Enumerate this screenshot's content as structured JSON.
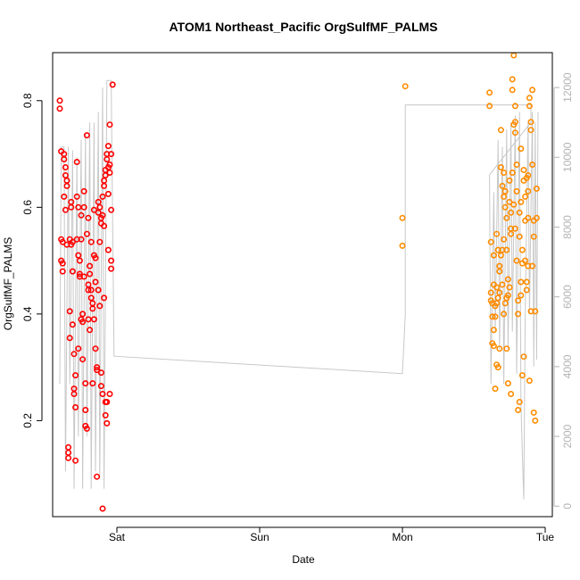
{
  "chart_data": {
    "type": "scatter",
    "title": "ATOM1 Northeast_Pacific OrgSulfMF_PALMS",
    "xlabel": "Date",
    "ylabel": "OrgSulfMF_PALMS",
    "x_unit": "days since Saturday 00:00",
    "xlim": [
      -0.45,
      3.05
    ],
    "ylim": [
      0.02,
      0.89
    ],
    "x_ticks": [
      {
        "label": "Sat",
        "value": 0
      },
      {
        "label": "Sun",
        "value": 1
      },
      {
        "label": "Mon",
        "value": 2
      },
      {
        "label": "Tue",
        "value": 3
      }
    ],
    "y_ticks": [
      {
        "label": "0.2",
        "value": 0.2
      },
      {
        "label": "0.4",
        "value": 0.4
      },
      {
        "label": "0.6",
        "value": 0.6
      },
      {
        "label": "0.8",
        "value": 0.8
      }
    ],
    "y2_ticks": [
      {
        "label": "0",
        "value": 0
      },
      {
        "label": "2000",
        "value": 2000
      },
      {
        "label": "4000",
        "value": 4000
      },
      {
        "label": "6000",
        "value": 6000
      },
      {
        "label": "8000",
        "value": 8000
      },
      {
        "label": "10000",
        "value": 10000
      },
      {
        "label": "12000",
        "value": 12000
      }
    ],
    "y2lim": [
      -300,
      13000
    ],
    "colors": {
      "series1": "#ff0000",
      "series2": "#ff8c00",
      "altitude": "#c8c8c8",
      "axis": "#000000",
      "right_axis": "#b3b3b3"
    },
    "series": [
      {
        "color": "#ff0000",
        "points": [
          [
            -0.4,
            0.8
          ],
          [
            -0.4,
            0.785
          ],
          [
            -0.39,
            0.705
          ],
          [
            -0.39,
            0.54
          ],
          [
            -0.39,
            0.5
          ],
          [
            -0.38,
            0.495
          ],
          [
            -0.38,
            0.48
          ],
          [
            -0.38,
            0.535
          ],
          [
            -0.37,
            0.7
          ],
          [
            -0.37,
            0.69
          ],
          [
            -0.37,
            0.62
          ],
          [
            -0.36,
            0.675
          ],
          [
            -0.36,
            0.66
          ],
          [
            -0.36,
            0.595
          ],
          [
            -0.35,
            0.65
          ],
          [
            -0.35,
            0.64
          ],
          [
            -0.35,
            0.53
          ],
          [
            -0.34,
            0.15
          ],
          [
            -0.34,
            0.14
          ],
          [
            -0.34,
            0.13
          ],
          [
            -0.33,
            0.405
          ],
          [
            -0.33,
            0.355
          ],
          [
            -0.33,
            0.54
          ],
          [
            -0.32,
            0.61
          ],
          [
            -0.32,
            0.6
          ],
          [
            -0.32,
            0.53
          ],
          [
            -0.31,
            0.535
          ],
          [
            -0.31,
            0.48
          ],
          [
            -0.31,
            0.38
          ],
          [
            -0.3,
            0.325
          ],
          [
            -0.3,
            0.25
          ],
          [
            -0.3,
            0.26
          ],
          [
            -0.29,
            0.125
          ],
          [
            -0.29,
            0.285
          ],
          [
            -0.29,
            0.225
          ],
          [
            -0.28,
            0.62
          ],
          [
            -0.28,
            0.54
          ],
          [
            -0.28,
            0.685
          ],
          [
            -0.27,
            0.6
          ],
          [
            -0.27,
            0.51
          ],
          [
            -0.27,
            0.335
          ],
          [
            -0.26,
            0.5
          ],
          [
            -0.26,
            0.475
          ],
          [
            -0.26,
            0.47
          ],
          [
            -0.25,
            0.585
          ],
          [
            -0.25,
            0.54
          ],
          [
            -0.25,
            0.39
          ],
          [
            -0.24,
            0.4
          ],
          [
            -0.24,
            0.385
          ],
          [
            -0.24,
            0.315
          ],
          [
            -0.23,
            0.63
          ],
          [
            -0.23,
            0.6
          ],
          [
            -0.23,
            0.47
          ],
          [
            -0.22,
            0.27
          ],
          [
            -0.22,
            0.22
          ],
          [
            -0.22,
            0.19
          ],
          [
            -0.21,
            0.735
          ],
          [
            -0.21,
            0.55
          ],
          [
            -0.21,
            0.185
          ],
          [
            -0.2,
            0.58
          ],
          [
            -0.2,
            0.455
          ],
          [
            -0.2,
            0.445
          ],
          [
            -0.19,
            0.49
          ],
          [
            -0.19,
            0.475
          ],
          [
            -0.19,
            0.37
          ],
          [
            -0.18,
            0.535
          ],
          [
            -0.18,
            0.445
          ],
          [
            -0.18,
            0.43
          ],
          [
            -0.17,
            0.42
          ],
          [
            -0.17,
            0.41
          ],
          [
            -0.17,
            0.27
          ],
          [
            -0.16,
            0.595
          ],
          [
            -0.16,
            0.51
          ],
          [
            -0.16,
            0.39
          ],
          [
            -0.15,
            0.505
          ],
          [
            -0.15,
            0.46
          ],
          [
            -0.15,
            0.335
          ],
          [
            -0.14,
            0.3
          ],
          [
            -0.14,
            0.295
          ],
          [
            -0.14,
            0.095
          ],
          [
            -0.13,
            0.61
          ],
          [
            -0.13,
            0.59
          ],
          [
            -0.13,
            0.445
          ],
          [
            -0.12,
            0.6
          ],
          [
            -0.12,
            0.535
          ],
          [
            -0.12,
            0.415
          ],
          [
            -0.11,
            0.58
          ],
          [
            -0.11,
            0.57
          ],
          [
            -0.11,
            0.29
          ],
          [
            -0.1,
            0.25
          ],
          [
            -0.1,
            0.035
          ],
          [
            -0.1,
            0.585
          ],
          [
            -0.09,
            0.65
          ],
          [
            -0.09,
            0.64
          ],
          [
            -0.09,
            0.565
          ],
          [
            -0.08,
            0.67
          ],
          [
            -0.08,
            0.66
          ],
          [
            -0.08,
            0.21
          ],
          [
            -0.07,
            0.7
          ],
          [
            -0.07,
            0.69
          ],
          [
            -0.07,
            0.195
          ],
          [
            -0.06,
            0.715
          ],
          [
            -0.06,
            0.675
          ],
          [
            -0.06,
            0.52
          ],
          [
            -0.05,
            0.755
          ],
          [
            -0.05,
            0.68
          ],
          [
            -0.05,
            0.25
          ],
          [
            -0.04,
            0.7
          ],
          [
            -0.04,
            0.595
          ],
          [
            -0.04,
            0.5
          ],
          [
            -0.04,
            0.485
          ],
          [
            -0.03,
            0.83
          ],
          [
            -0.07,
            0.235
          ],
          [
            -0.08,
            0.235
          ],
          [
            -0.1,
            0.62
          ],
          [
            -0.11,
            0.265
          ],
          [
            -0.05,
            0.665
          ],
          [
            -0.06,
            0.625
          ],
          [
            -0.09,
            0.43
          ],
          [
            -0.2,
            0.39
          ]
        ]
      },
      {
        "color": "#ff8c00",
        "points": [
          [
            2.02,
            0.827
          ],
          [
            2.0,
            0.58
          ],
          [
            2.0,
            0.528
          ],
          [
            2.61,
            0.815
          ],
          [
            2.61,
            0.79
          ],
          [
            2.62,
            0.535
          ],
          [
            2.62,
            0.44
          ],
          [
            2.62,
            0.425
          ],
          [
            2.63,
            0.42
          ],
          [
            2.63,
            0.395
          ],
          [
            2.63,
            0.345
          ],
          [
            2.64,
            0.51
          ],
          [
            2.64,
            0.455
          ],
          [
            2.64,
            0.37
          ],
          [
            2.64,
            0.34
          ],
          [
            2.65,
            0.415
          ],
          [
            2.65,
            0.395
          ],
          [
            2.65,
            0.26
          ],
          [
            2.66,
            0.55
          ],
          [
            2.66,
            0.45
          ],
          [
            2.66,
            0.305
          ],
          [
            2.67,
            0.43
          ],
          [
            2.67,
            0.52
          ],
          [
            2.67,
            0.3
          ],
          [
            2.68,
            0.48
          ],
          [
            2.68,
            0.44
          ],
          [
            2.68,
            0.335
          ],
          [
            2.69,
            0.745
          ],
          [
            2.69,
            0.675
          ],
          [
            2.69,
            0.51
          ],
          [
            2.7,
            0.64
          ],
          [
            2.7,
            0.52
          ],
          [
            2.7,
            0.455
          ],
          [
            2.71,
            0.665
          ],
          [
            2.71,
            0.54
          ],
          [
            2.71,
            0.4
          ],
          [
            2.72,
            0.63
          ],
          [
            2.72,
            0.6
          ],
          [
            2.72,
            0.42
          ],
          [
            2.73,
            0.58
          ],
          [
            2.73,
            0.52
          ],
          [
            2.73,
            0.335
          ],
          [
            2.74,
            0.465
          ],
          [
            2.74,
            0.435
          ],
          [
            2.74,
            0.27
          ],
          [
            2.75,
            0.65
          ],
          [
            2.75,
            0.61
          ],
          [
            2.75,
            0.45
          ],
          [
            2.76,
            0.59
          ],
          [
            2.76,
            0.55
          ],
          [
            2.76,
            0.25
          ],
          [
            2.77,
            0.84
          ],
          [
            2.77,
            0.82
          ],
          [
            2.77,
            0.665
          ],
          [
            2.78,
            0.885
          ],
          [
            2.78,
            0.755
          ],
          [
            2.78,
            0.605
          ],
          [
            2.79,
            0.76
          ],
          [
            2.79,
            0.74
          ],
          [
            2.79,
            0.56
          ],
          [
            2.8,
            0.68
          ],
          [
            2.8,
            0.63
          ],
          [
            2.8,
            0.5
          ],
          [
            2.81,
            0.425
          ],
          [
            2.81,
            0.4
          ],
          [
            2.81,
            0.22
          ],
          [
            2.82,
            0.59
          ],
          [
            2.82,
            0.545
          ],
          [
            2.82,
            0.235
          ],
          [
            2.83,
            0.71
          ],
          [
            2.83,
            0.61
          ],
          [
            2.83,
            0.435
          ],
          [
            2.84,
            0.52
          ],
          [
            2.84,
            0.495
          ],
          [
            2.84,
            0.285
          ],
          [
            2.85,
            0.67
          ],
          [
            2.85,
            0.65
          ],
          [
            2.85,
            0.32
          ],
          [
            2.86,
            0.62
          ],
          [
            2.86,
            0.575
          ],
          [
            2.86,
            0.5
          ],
          [
            2.87,
            0.655
          ],
          [
            2.87,
            0.46
          ],
          [
            2.87,
            0.445
          ],
          [
            2.88,
            0.66
          ],
          [
            2.88,
            0.58
          ],
          [
            2.88,
            0.49
          ],
          [
            2.89,
            0.805
          ],
          [
            2.89,
            0.79
          ],
          [
            2.89,
            0.275
          ],
          [
            2.9,
            0.76
          ],
          [
            2.9,
            0.745
          ],
          [
            2.9,
            0.405
          ],
          [
            2.91,
            0.82
          ],
          [
            2.91,
            0.68
          ],
          [
            2.91,
            0.49
          ],
          [
            2.92,
            0.575
          ],
          [
            2.92,
            0.545
          ],
          [
            2.92,
            0.215
          ],
          [
            2.93,
            0.2
          ],
          [
            2.93,
            0.405
          ],
          [
            2.94,
            0.635
          ],
          [
            2.94,
            0.58
          ],
          [
            2.83,
            0.46
          ],
          [
            2.76,
            0.56
          ],
          [
            2.71,
            0.62
          ],
          [
            2.68,
            0.49
          ],
          [
            2.73,
            0.43
          ],
          [
            2.88,
            0.63
          ],
          [
            2.79,
            0.79
          ],
          [
            2.66,
            0.42
          ]
        ]
      }
    ],
    "altitude_trace": {
      "color": "#c8c8c8",
      "points": [
        [
          -0.4,
          3500
        ],
        [
          -0.39,
          10300
        ],
        [
          -0.37,
          10300
        ],
        [
          -0.36,
          1000
        ],
        [
          -0.34,
          10300
        ],
        [
          -0.33,
          3500
        ],
        [
          -0.31,
          10200
        ],
        [
          -0.3,
          500
        ],
        [
          -0.28,
          10000
        ],
        [
          -0.27,
          2000
        ],
        [
          -0.25,
          10500
        ],
        [
          -0.24,
          500
        ],
        [
          -0.22,
          10700
        ],
        [
          -0.21,
          2000
        ],
        [
          -0.19,
          11000
        ],
        [
          -0.18,
          500
        ],
        [
          -0.16,
          11000
        ],
        [
          -0.15,
          1000
        ],
        [
          -0.13,
          11300
        ],
        [
          -0.12,
          800
        ],
        [
          -0.1,
          12000
        ],
        [
          -0.09,
          500
        ],
        [
          -0.07,
          12200
        ],
        [
          -0.05,
          12200
        ],
        [
          -0.04,
          12200
        ],
        [
          -0.02,
          4300
        ],
        [
          2.0,
          3800
        ],
        [
          2.02,
          5500
        ],
        [
          2.02,
          11500
        ],
        [
          2.9,
          11500
        ],
        [
          2.9,
          11000
        ],
        [
          2.61,
          9500
        ],
        [
          2.62,
          3500
        ],
        [
          2.64,
          9000
        ],
        [
          2.65,
          5000
        ],
        [
          2.67,
          10500
        ],
        [
          2.68,
          4500
        ],
        [
          2.7,
          10300
        ],
        [
          2.71,
          3500
        ],
        [
          2.73,
          10800
        ],
        [
          2.74,
          4500
        ],
        [
          2.76,
          11000
        ],
        [
          2.77,
          5000
        ],
        [
          2.79,
          11200
        ],
        [
          2.8,
          3800
        ],
        [
          2.82,
          11300
        ],
        [
          2.83,
          3000
        ],
        [
          2.84,
          1500
        ],
        [
          2.85,
          200
        ],
        [
          2.86,
          5500
        ],
        [
          2.88,
          11000
        ],
        [
          2.89,
          5500
        ],
        [
          2.91,
          11300
        ],
        [
          2.92,
          4000
        ],
        [
          2.93,
          11000
        ],
        [
          2.94,
          4200
        ],
        [
          2.95,
          11300
        ]
      ]
    }
  }
}
